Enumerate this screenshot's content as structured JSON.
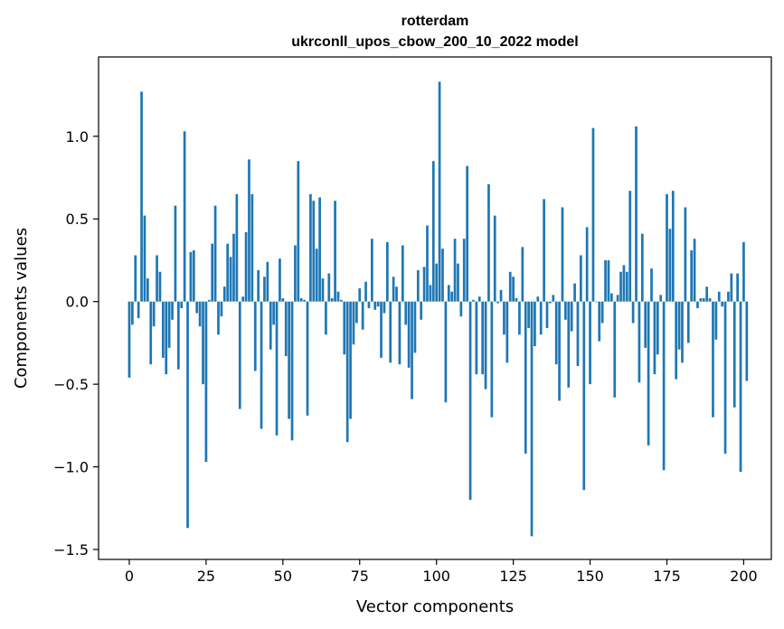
{
  "chart_data": {
    "type": "bar",
    "title_line1": "rotterdam",
    "title_line2": "ukrconll_upos_cbow_200_10_2022 model",
    "xlabel": "Vector components",
    "ylabel": "Components values",
    "xlim": [
      -10,
      209
    ],
    "ylim": [
      -1.56,
      1.48
    ],
    "xticks": [
      0,
      25,
      50,
      75,
      100,
      125,
      150,
      175,
      200
    ],
    "yticks": [
      -1.5,
      -1.0,
      -0.5,
      0.0,
      0.5,
      1.0
    ],
    "ytick_labels": [
      "−1.5",
      "−1.0",
      "−0.5",
      "0.0",
      "0.5",
      "1.0"
    ],
    "grid": false,
    "bar_color": "#1f77b4",
    "values": [
      -0.46,
      -0.14,
      0.28,
      -0.1,
      1.27,
      0.52,
      0.14,
      -0.38,
      -0.15,
      0.28,
      0.18,
      -0.34,
      -0.44,
      -0.28,
      -0.11,
      0.58,
      -0.41,
      -0.04,
      1.03,
      -1.37,
      0.3,
      0.31,
      -0.07,
      -0.15,
      -0.5,
      -0.97,
      0.01,
      0.35,
      0.58,
      -0.2,
      -0.09,
      0.09,
      0.35,
      0.27,
      0.41,
      0.65,
      -0.65,
      0.03,
      0.42,
      0.86,
      0.65,
      -0.42,
      0.19,
      -0.77,
      0.15,
      0.24,
      -0.29,
      -0.14,
      -0.81,
      0.26,
      0.02,
      -0.33,
      -0.71,
      -0.84,
      0.34,
      0.85,
      0.02,
      0.01,
      -0.69,
      0.65,
      0.61,
      0.32,
      0.63,
      0.14,
      -0.2,
      0.17,
      0.02,
      0.61,
      0.06,
      0.01,
      -0.32,
      -0.85,
      -0.71,
      -0.26,
      -0.13,
      0.08,
      -0.17,
      0.12,
      -0.04,
      0.38,
      -0.05,
      -0.03,
      -0.34,
      -0.07,
      0.36,
      -0.37,
      0.15,
      0.09,
      -0.38,
      0.34,
      -0.14,
      -0.4,
      -0.59,
      -0.31,
      0.19,
      -0.11,
      0.21,
      0.46,
      0.1,
      0.85,
      0.23,
      1.33,
      0.32,
      -0.61,
      0.1,
      0.06,
      0.38,
      0.23,
      -0.09,
      0.38,
      0.82,
      -1.2,
      0.01,
      -0.44,
      0.03,
      -0.44,
      -0.53,
      0.71,
      -0.7,
      0.52,
      -0.01,
      0.07,
      -0.2,
      -0.37,
      0.18,
      0.15,
      0.02,
      -0.2,
      0.33,
      -0.92,
      -0.16,
      -1.42,
      -0.27,
      0.03,
      -0.2,
      0.62,
      -0.16,
      -0.01,
      0.04,
      -0.38,
      -0.6,
      0.57,
      -0.11,
      -0.52,
      -0.18,
      0.11,
      -0.39,
      0.28,
      -1.14,
      0.45,
      -0.5,
      1.05,
      0.0,
      -0.24,
      -0.13,
      0.25,
      0.25,
      0.05,
      -0.58,
      0.04,
      0.18,
      0.22,
      0.18,
      0.67,
      -0.13,
      1.06,
      -0.49,
      0.41,
      -0.28,
      -0.87,
      0.2,
      -0.44,
      -0.32,
      0.04,
      -1.02,
      0.65,
      0.44,
      0.67,
      -0.47,
      -0.29,
      -0.37,
      0.57,
      -0.25,
      0.31,
      0.38,
      -0.04,
      0.02,
      0.02,
      0.09,
      0.02,
      -0.7,
      -0.23,
      0.06,
      -0.03,
      -0.92,
      0.06,
      0.17,
      -0.64,
      0.17,
      -1.03,
      0.36,
      -0.48
    ]
  }
}
